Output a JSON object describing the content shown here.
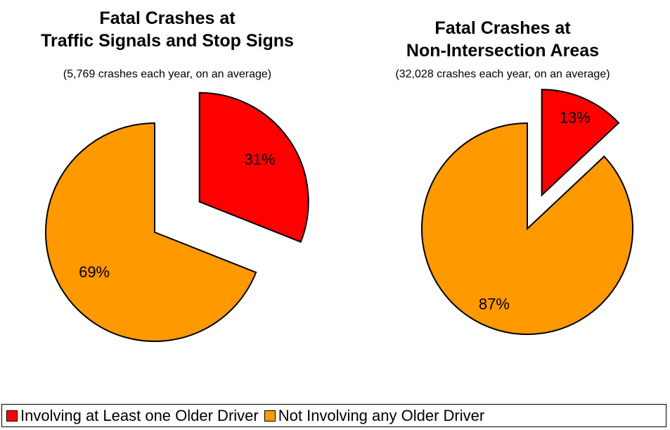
{
  "chart_data": [
    {
      "type": "pie",
      "title": "Fatal Crashes at\nTraffic Signals and Stop Signs",
      "subtitle": "(5,769 crashes each year, on an average)",
      "categories": [
        "Involving at Least one Older Driver",
        "Not Involving any Older Driver"
      ],
      "values": [
        31,
        69
      ],
      "value_labels": [
        "31%",
        "69%"
      ],
      "colors": [
        "#ff0000",
        "#ff9900"
      ]
    },
    {
      "type": "pie",
      "title": "Fatal Crashes at\nNon-Intersection Areas",
      "subtitle": "(32,028 crashes each year, on an average)",
      "categories": [
        "Involving at Least one Older Driver",
        "Not Involving any Older Driver"
      ],
      "values": [
        13,
        87
      ],
      "value_labels": [
        "13%",
        "87%"
      ],
      "colors": [
        "#ff0000",
        "#ff9900"
      ]
    }
  ]
}
